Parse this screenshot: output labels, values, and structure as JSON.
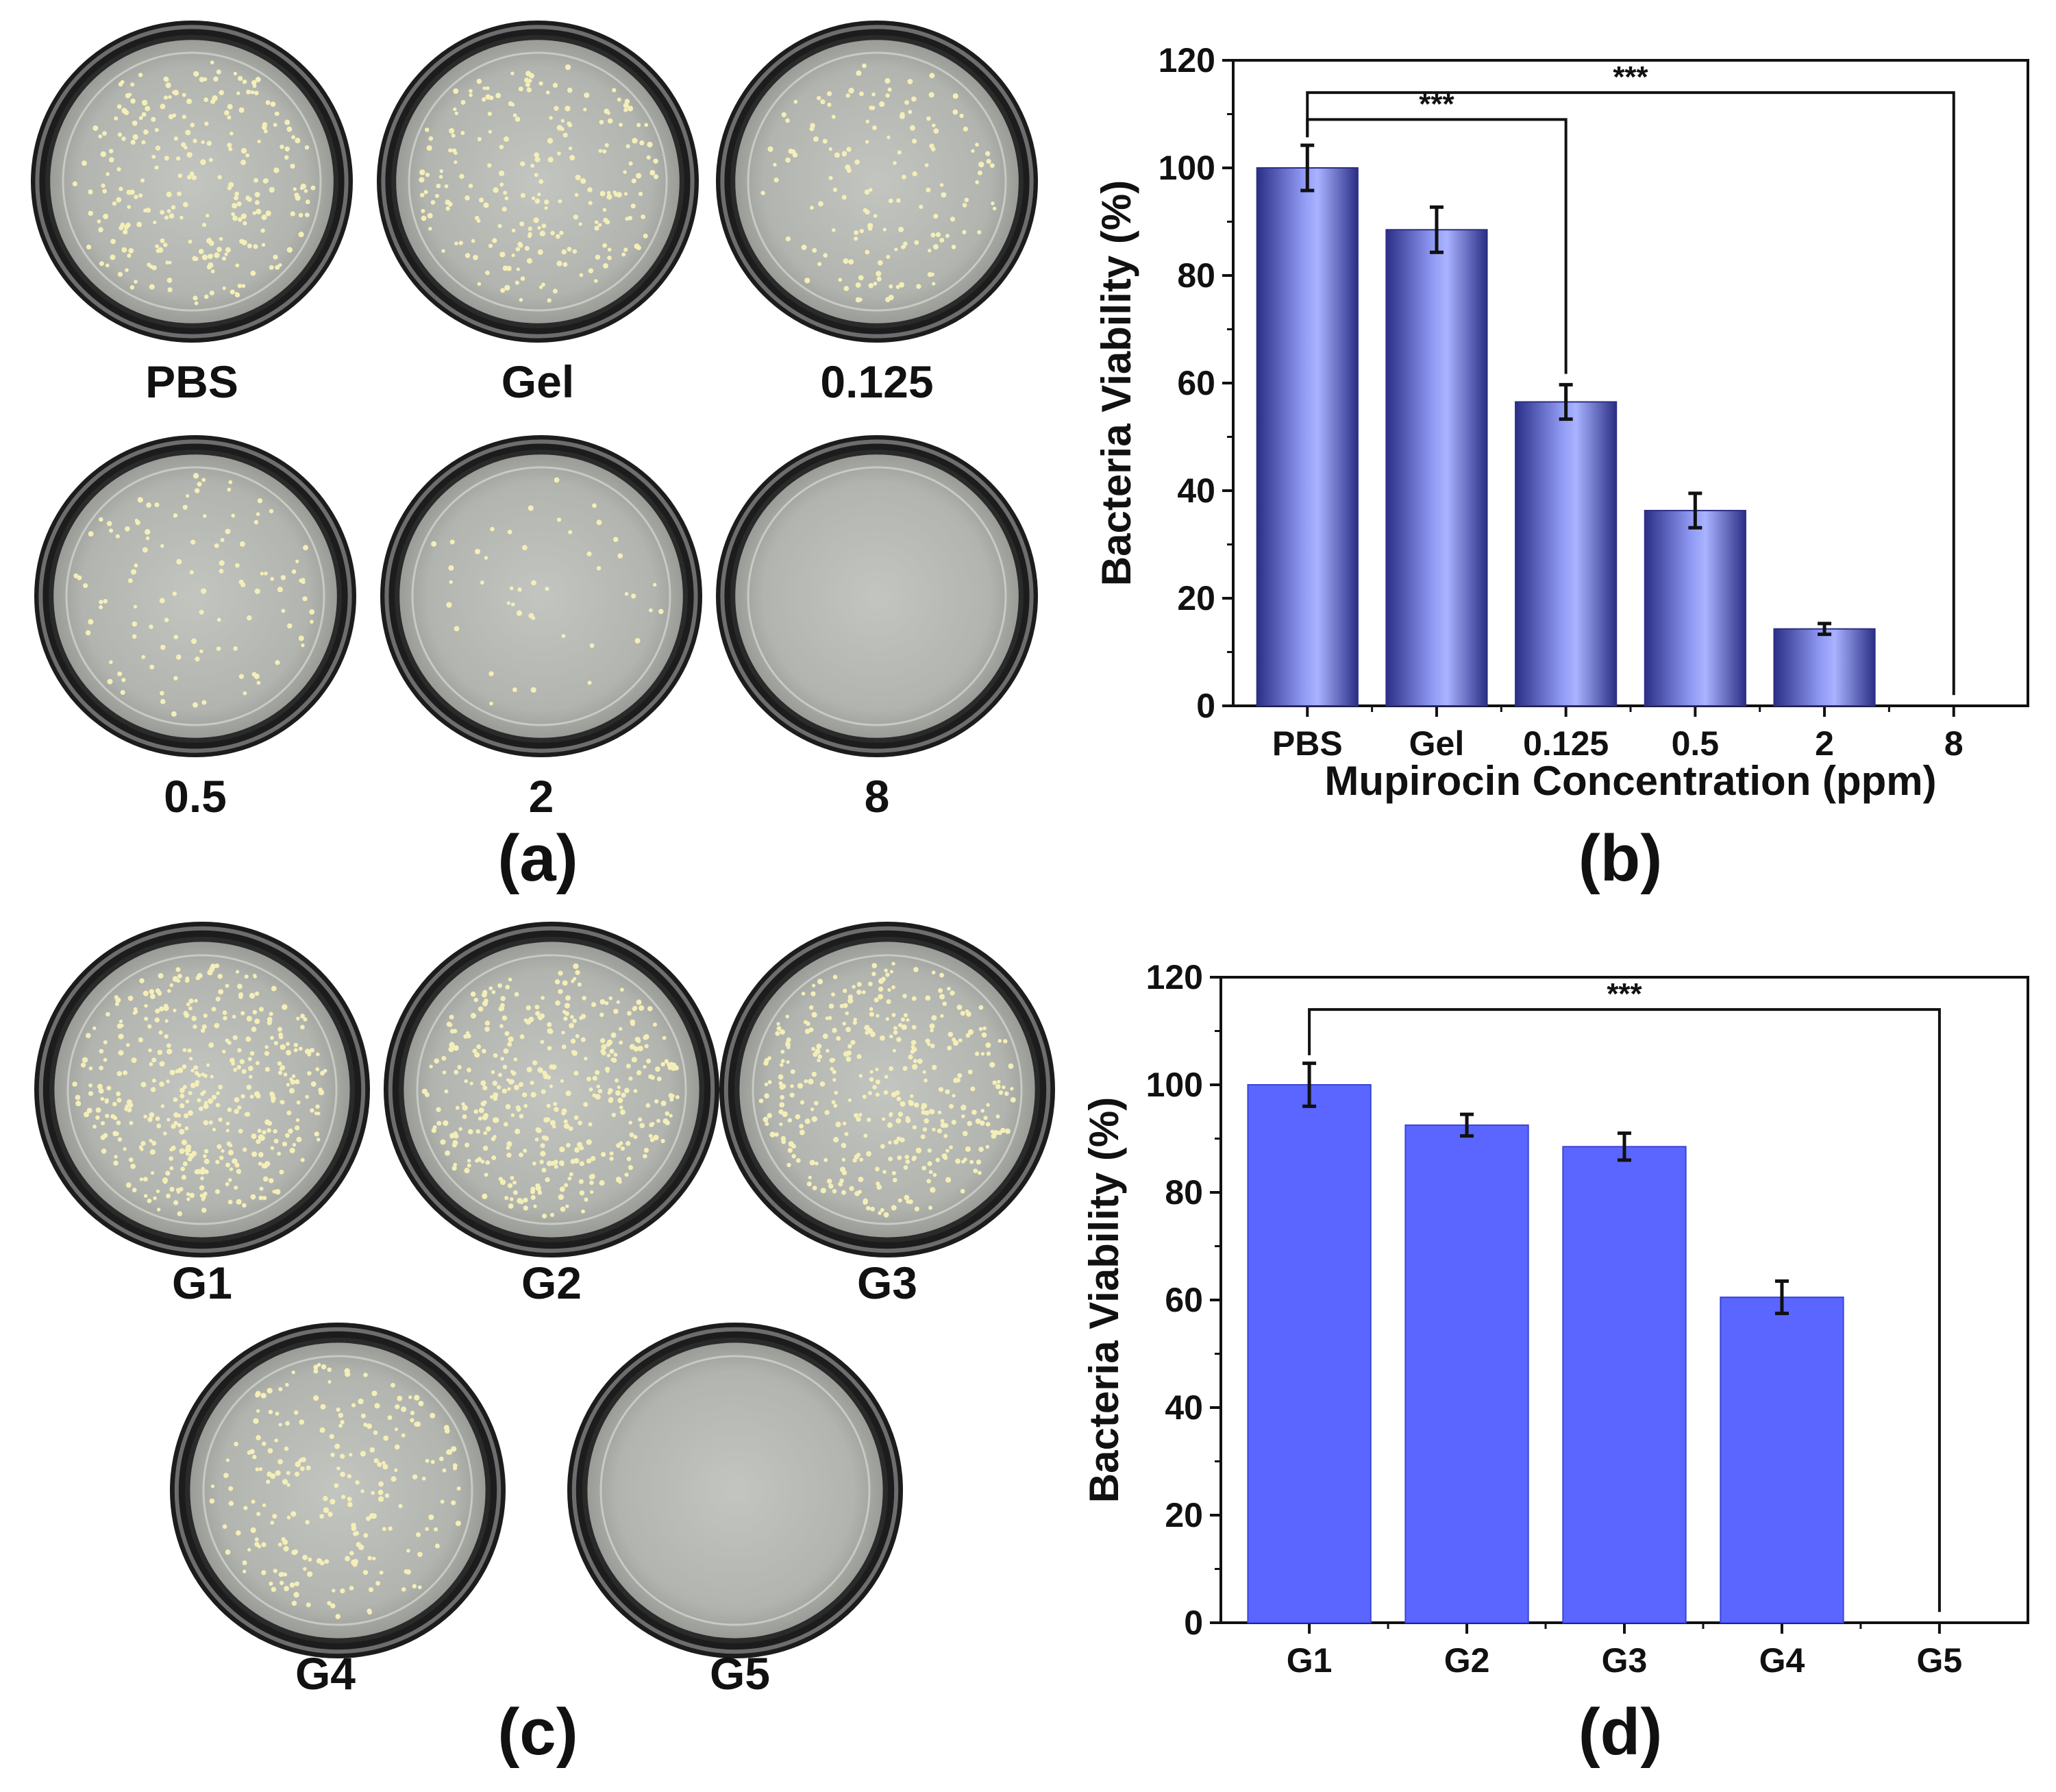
{
  "panels": {
    "a": {
      "label": "(a)",
      "plates": [
        {
          "label": "PBS",
          "colonies": 260
        },
        {
          "label": "Gel",
          "colonies": 220
        },
        {
          "label": "0.125",
          "colonies": 150
        },
        {
          "label": "0.5",
          "colonies": 110
        },
        {
          "label": "2",
          "colonies": 45
        },
        {
          "label": "8",
          "colonies": 0
        }
      ]
    },
    "b": {
      "label": "(b)"
    },
    "c": {
      "label": "(c)",
      "plates": [
        {
          "label": "G1",
          "colonies": 420
        },
        {
          "label": "G2",
          "colonies": 400
        },
        {
          "label": "G3",
          "colonies": 380
        },
        {
          "label": "G4",
          "colonies": 230
        },
        {
          "label": "G5",
          "colonies": 0
        }
      ]
    },
    "d": {
      "label": "(d)"
    }
  },
  "colors": {
    "bar_b_dark": "#2b2f86",
    "bar_b_light": "#a9b3ff",
    "bar_d": "#5a66ff",
    "bar_d_edge": "#3a45d6",
    "plate_rim": "#1c1c1c",
    "plate_agar": "#b9bbb6",
    "colony": "#f4efb8"
  },
  "chart_data": [
    {
      "id": "b",
      "type": "bar",
      "categories": [
        "PBS",
        "Gel",
        "0.125",
        "0.5",
        "2",
        "8"
      ],
      "values": [
        100,
        88.5,
        56.5,
        36.3,
        14.3,
        0
      ],
      "errors": [
        4.2,
        4.2,
        3.2,
        3.2,
        1.0,
        0
      ],
      "xlabel": "Mupirocin Concentration (ppm)",
      "ylabel": "Bacteria Viability (%)",
      "ylim": [
        0,
        120
      ],
      "yticks": [
        "0",
        "20",
        "40",
        "60",
        "80",
        "100",
        "120"
      ],
      "significance": [
        {
          "from": "PBS",
          "to": "0.125",
          "label": "***"
        },
        {
          "from": "PBS",
          "to": "8",
          "label": "***"
        }
      ]
    },
    {
      "id": "d",
      "type": "bar",
      "categories": [
        "G1",
        "G2",
        "G3",
        "G4",
        "G5"
      ],
      "values": [
        100,
        92.5,
        88.5,
        60.5,
        0
      ],
      "errors": [
        4.0,
        2.0,
        2.5,
        3.0,
        0
      ],
      "xlabel": "",
      "ylabel": "Bacteria Viability (%)",
      "ylim": [
        0,
        120
      ],
      "yticks": [
        "0",
        "20",
        "40",
        "60",
        "80",
        "100",
        "120"
      ],
      "significance": [
        {
          "from": "G1",
          "to": "G5",
          "label": "***"
        }
      ]
    }
  ]
}
